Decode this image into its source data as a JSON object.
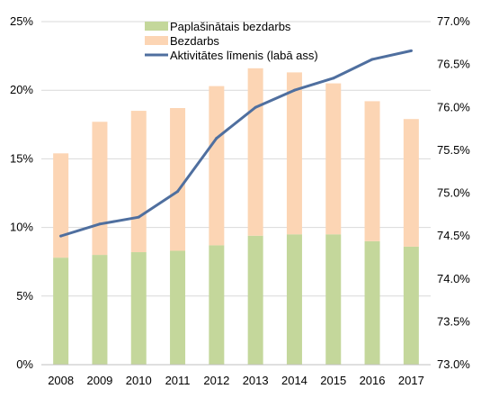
{
  "chart_data": {
    "type": "bar",
    "stacked": true,
    "categories": [
      "2008",
      "2009",
      "2010",
      "2011",
      "2012",
      "2013",
      "2014",
      "2015",
      "2016",
      "2017"
    ],
    "series": [
      {
        "name": "Paplašinātais bezdarbs",
        "type": "bar",
        "axis": "left",
        "color": "#c4d79b",
        "values": [
          7.8,
          8.0,
          8.2,
          8.3,
          8.7,
          9.4,
          9.5,
          9.5,
          9.0,
          8.6
        ]
      },
      {
        "name": "Bezdarbs",
        "type": "bar",
        "axis": "left",
        "color": "#fcd5b4",
        "values": [
          7.6,
          9.7,
          10.3,
          10.4,
          11.6,
          12.2,
          11.8,
          11.0,
          10.2,
          9.3
        ]
      },
      {
        "name": "Aktivitātes līmenis (labā ass)",
        "type": "line",
        "axis": "right",
        "color": "#4f6f9f",
        "values": [
          74.5,
          74.64,
          74.72,
          75.02,
          75.64,
          76.0,
          76.2,
          76.34,
          76.56,
          76.66
        ]
      }
    ],
    "ylim": [
      0,
      25
    ],
    "y2lim": [
      73.0,
      77.0
    ],
    "yticks": [
      "0%",
      "5%",
      "10%",
      "15%",
      "20%",
      "25%"
    ],
    "y2ticks": [
      "73.0%",
      "73.5%",
      "74.0%",
      "74.5%",
      "75.0%",
      "75.5%",
      "76.0%",
      "76.5%",
      "77.0%"
    ],
    "grid": true,
    "legend_position": "top-center"
  }
}
